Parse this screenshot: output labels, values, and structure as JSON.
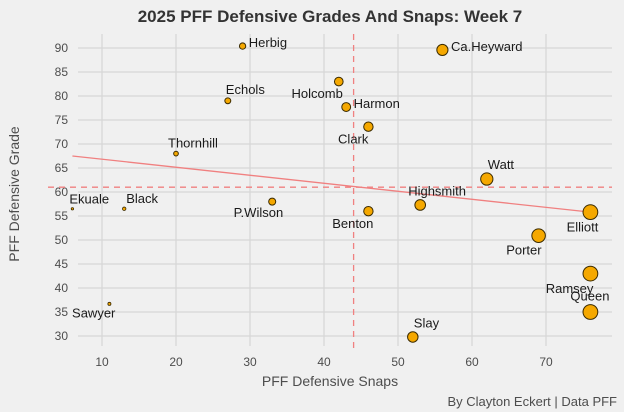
{
  "chart_data": {
    "type": "scatter",
    "title": "2025 PFF Defensive Grades And Snaps: Week 7",
    "xlabel": "PFF Defensive Snaps",
    "ylabel": "PFF Defensive Grade",
    "caption": "By Clayton Eckert | Data PFF",
    "xlim": [
      4,
      78
    ],
    "ylim": [
      28,
      92
    ],
    "x_ticks": [
      10,
      20,
      30,
      40,
      50,
      60,
      70
    ],
    "y_ticks": [
      30,
      35,
      40,
      45,
      50,
      55,
      60,
      65,
      70,
      75,
      80,
      85,
      90
    ],
    "grid": true,
    "point_color": "#f5a800",
    "point_stroke": "#3a2a00",
    "reference_color": "#f08080",
    "reference_lines": {
      "mean_snaps": 44,
      "mean_grade": 61
    },
    "trend_line": {
      "x": [
        6,
        76
      ],
      "y": [
        67.5,
        55.8
      ]
    },
    "points": [
      {
        "name": "Herbig",
        "snaps": 29,
        "grade": 90.4,
        "label_pos": "right"
      },
      {
        "name": "Ca.Heyward",
        "snaps": 56,
        "grade": 89.6,
        "label_pos": "right"
      },
      {
        "name": "Holcomb",
        "snaps": 42,
        "grade": 83.0,
        "label_pos": "below-left"
      },
      {
        "name": "Echols",
        "snaps": 27,
        "grade": 79.0,
        "label_pos": "above-right"
      },
      {
        "name": "Harmon",
        "snaps": 43,
        "grade": 77.7,
        "label_pos": "right"
      },
      {
        "name": "Clark",
        "snaps": 46,
        "grade": 73.6,
        "label_pos": "below-left"
      },
      {
        "name": "Thornhill",
        "snaps": 20,
        "grade": 68.0,
        "label_pos": "above"
      },
      {
        "name": "Watt",
        "snaps": 62,
        "grade": 62.7,
        "label_pos": "above-right"
      },
      {
        "name": "P.Wilson",
        "snaps": 33,
        "grade": 58.0,
        "label_pos": "below-left"
      },
      {
        "name": "Highsmith",
        "snaps": 53,
        "grade": 57.3,
        "label_pos": "above"
      },
      {
        "name": "Ekuale",
        "snaps": 6,
        "grade": 56.5,
        "label_pos": "above-right"
      },
      {
        "name": "Black",
        "snaps": 13,
        "grade": 56.5,
        "label_pos": "above-right"
      },
      {
        "name": "Benton",
        "snaps": 46,
        "grade": 56.0,
        "label_pos": "below-left"
      },
      {
        "name": "Elliott",
        "snaps": 76,
        "grade": 55.8,
        "label_pos": "below-left"
      },
      {
        "name": "Porter",
        "snaps": 69,
        "grade": 50.9,
        "label_pos": "below-left"
      },
      {
        "name": "Ramsey",
        "snaps": 76,
        "grade": 43.0,
        "label_pos": "below-left"
      },
      {
        "name": "Sawyer",
        "snaps": 11,
        "grade": 36.7,
        "label_pos": "below-left"
      },
      {
        "name": "Queen",
        "snaps": 76,
        "grade": 35.0,
        "label_pos": "above"
      },
      {
        "name": "Slay",
        "snaps": 52,
        "grade": 29.8,
        "label_pos": "above-right"
      }
    ]
  }
}
